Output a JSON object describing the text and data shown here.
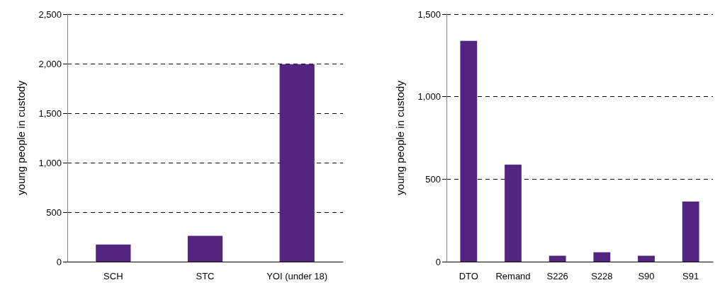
{
  "chart_data": [
    {
      "type": "bar",
      "ylabel": "young people in custody",
      "categories": [
        "SCH",
        "STC",
        "YOI (under 18)"
      ],
      "values": [
        174,
        260,
        1995
      ],
      "color": "#532580",
      "ylim": [
        0,
        2500
      ],
      "yticks": [
        {
          "value": 0,
          "label": "0"
        },
        {
          "value": 500,
          "label": "500"
        },
        {
          "value": 1000,
          "label": "1,000"
        },
        {
          "value": 1500,
          "label": "1,500"
        },
        {
          "value": 2000,
          "label": "2,000"
        },
        {
          "value": 2500,
          "label": "2,500"
        }
      ],
      "grid": "y"
    },
    {
      "type": "bar",
      "ylabel": "young people in custody",
      "categories": [
        "DTO",
        "Remand",
        "S226",
        "S228",
        "S90",
        "S91"
      ],
      "values": [
        1338,
        588,
        36,
        57,
        36,
        364
      ],
      "color": "#532580",
      "ylim": [
        0,
        1500
      ],
      "yticks": [
        {
          "value": 0,
          "label": "0"
        },
        {
          "value": 500,
          "label": "500"
        },
        {
          "value": 1000,
          "label": "1,000"
        },
        {
          "value": 1500,
          "label": "1,500"
        }
      ],
      "grid": "y"
    }
  ]
}
